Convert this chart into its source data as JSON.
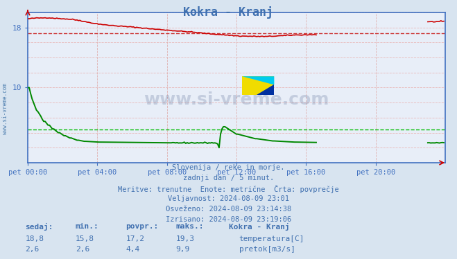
{
  "title": "Kokra - Kranj",
  "bg_color": "#d8e4f0",
  "plot_bg_color": "#e8eef8",
  "text_color": "#4070b0",
  "axis_color": "#4070c0",
  "temp_color": "#cc0000",
  "flow_color": "#008800",
  "grid_color": "#e8b8b8",
  "grid_vcolor": "#e0b0b0",
  "avg_temp_color": "#cc3333",
  "avg_flow_color": "#00bb00",
  "x_min": 0,
  "x_max": 288,
  "y_min": 0,
  "y_max": 20,
  "temp_avg": 17.2,
  "flow_avg": 4.4,
  "subtitle1": "Slovenija / reke in morje.",
  "subtitle2": "zadnji dan / 5 minut.",
  "subtitle3": "Meritve: trenutne  Enote: metrične  Črta: povprečje",
  "subtitle4": "Veljavnost: 2024-08-09 23:01",
  "subtitle5": "Osveženo: 2024-08-09 23:14:38",
  "subtitle6": "Izrisano: 2024-08-09 23:19:06",
  "label_sedaj": "sedaj:",
  "label_min": "min.:",
  "label_povpr": "povpr.:",
  "label_maks": "maks.:",
  "label_station": "Kokra - Kranj",
  "label_temp": "temperatura[C]",
  "label_flow": "pretok[m3/s]",
  "val_temp_cur": "18,8",
  "val_temp_min": "15,8",
  "val_temp_avg": "17,2",
  "val_temp_max": "19,3",
  "val_flow_cur": "2,6",
  "val_flow_min": "2,6",
  "val_flow_avg": "4,4",
  "val_flow_max": "9,9",
  "xtick_labels": [
    "pet 00:00",
    "pet 04:00",
    "pet 08:00",
    "pet 12:00",
    "pet 16:00",
    "pet 20:00"
  ],
  "xtick_positions": [
    0,
    48,
    96,
    144,
    192,
    240
  ],
  "watermark": "www.si-vreme.com"
}
